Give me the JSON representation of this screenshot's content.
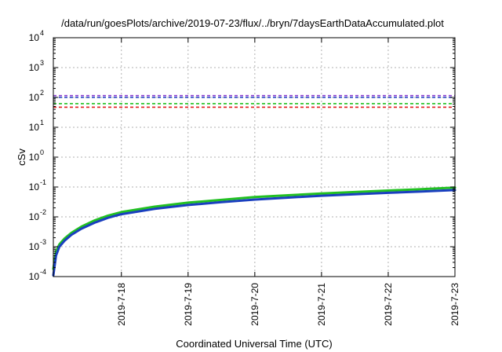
{
  "chart_data": {
    "type": "line",
    "title": "/data/run/goesPlots/archive/2019-07-23/flux/../bryn/7daysEarthDataAccumulated.plot",
    "xlabel": "Coordinated Universal Time (UTC)",
    "ylabel": "cSv",
    "y_scale": "log",
    "ylim": [
      0.0001,
      10000
    ],
    "y_ticks": [
      {
        "value": 0.0001,
        "base": "10",
        "exp": "-4"
      },
      {
        "value": 0.001,
        "base": "10",
        "exp": "-3"
      },
      {
        "value": 0.01,
        "base": "10",
        "exp": "-2"
      },
      {
        "value": 0.1,
        "base": "10",
        "exp": "-1"
      },
      {
        "value": 1,
        "base": "10",
        "exp": "0"
      },
      {
        "value": 10,
        "base": "10",
        "exp": "1"
      },
      {
        "value": 100,
        "base": "10",
        "exp": "2"
      },
      {
        "value": 1000,
        "base": "10",
        "exp": "3"
      },
      {
        "value": 10000,
        "base": "10",
        "exp": "4"
      }
    ],
    "x_unit": "days",
    "xlim": [
      -1.02,
      5.0
    ],
    "x_ticks": [
      {
        "value": 0,
        "label": "2019-7-18"
      },
      {
        "value": 1,
        "label": "2019-7-19"
      },
      {
        "value": 2,
        "label": "2019-7-20"
      },
      {
        "value": 3,
        "label": "2019-7-21"
      },
      {
        "value": 4,
        "label": "2019-7-22"
      },
      {
        "value": 5,
        "label": "2019-7-23"
      }
    ],
    "grid": true,
    "thresholds": [
      {
        "value": 115,
        "color": "#8b3fd1",
        "style": "dashed"
      },
      {
        "value": 100,
        "color": "#1a3fbf",
        "style": "dashed"
      },
      {
        "value": 62,
        "color": "#22c022",
        "style": "dashed"
      },
      {
        "value": 47,
        "color": "#e21b1b",
        "style": "dashed"
      }
    ],
    "series": [
      {
        "color": "#22c022",
        "width": 3,
        "x": [
          -1.02,
          -0.98,
          -0.93,
          -0.85,
          -0.75,
          -0.6,
          -0.4,
          -0.2,
          0.0,
          0.5,
          1.0,
          1.5,
          2.0,
          2.5,
          3.0,
          3.5,
          4.0,
          4.5,
          5.0
        ],
        "y": [
          0.00018,
          0.0007,
          0.0012,
          0.0019,
          0.0029,
          0.0047,
          0.0076,
          0.011,
          0.0145,
          0.022,
          0.03,
          0.037,
          0.046,
          0.053,
          0.061,
          0.068,
          0.076,
          0.085,
          0.095
        ]
      },
      {
        "color": "#1a3fbf",
        "width": 3,
        "x": [
          -1.02,
          -0.98,
          -0.93,
          -0.85,
          -0.75,
          -0.6,
          -0.4,
          -0.2,
          0.0,
          0.5,
          1.0,
          1.5,
          2.0,
          2.5,
          3.0,
          3.5,
          4.0,
          4.5,
          5.0
        ],
        "y": [
          0.00011,
          0.0005,
          0.001,
          0.0016,
          0.0025,
          0.004,
          0.0064,
          0.0093,
          0.0123,
          0.0185,
          0.025,
          0.031,
          0.038,
          0.044,
          0.051,
          0.057,
          0.064,
          0.071,
          0.079
        ]
      }
    ]
  }
}
